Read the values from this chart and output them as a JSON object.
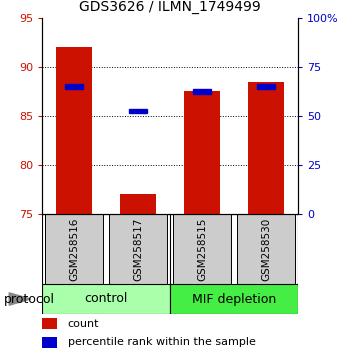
{
  "title": "GDS3626 / ILMN_1749499",
  "samples": [
    "GSM258516",
    "GSM258517",
    "GSM258515",
    "GSM258530"
  ],
  "bar_values": [
    92.0,
    77.0,
    87.5,
    88.5
  ],
  "percentile_values": [
    88.0,
    85.5,
    87.5,
    88.0
  ],
  "y_min": 75,
  "y_max": 95,
  "y_ticks_left": [
    75,
    80,
    85,
    90,
    95
  ],
  "y_ticks_right": [
    0,
    25,
    50,
    75,
    100
  ],
  "y_ticks_right_labels": [
    "0",
    "25",
    "50",
    "75",
    "100%"
  ],
  "bar_color": "#cc1100",
  "percentile_color": "#0000cc",
  "groups": [
    {
      "label": "control",
      "color": "#aaffaa"
    },
    {
      "label": "MIF depletion",
      "color": "#44ee44"
    }
  ],
  "protocol_label": "protocol",
  "left_tick_color": "#cc1100",
  "right_tick_color": "#0000cc",
  "grid_color": "#000000",
  "background_color": "#ffffff",
  "sample_box_color": "#cccccc",
  "title_fontsize": 10,
  "tick_fontsize": 8,
  "legend_fontsize": 8,
  "sample_fontsize": 7.5,
  "group_fontsize": 9
}
